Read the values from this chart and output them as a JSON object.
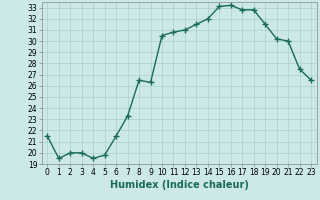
{
  "title": "",
  "xlabel": "Humidex (Indice chaleur)",
  "x": [
    0,
    1,
    2,
    3,
    4,
    5,
    6,
    7,
    8,
    9,
    10,
    11,
    12,
    13,
    14,
    15,
    16,
    17,
    18,
    19,
    20,
    21,
    22,
    23
  ],
  "y": [
    21.5,
    19.5,
    20.0,
    20.0,
    19.5,
    19.8,
    21.5,
    23.3,
    26.5,
    26.3,
    30.5,
    30.8,
    31.0,
    31.5,
    32.0,
    33.1,
    33.2,
    32.8,
    32.8,
    31.5,
    30.2,
    30.0,
    27.5,
    26.5
  ],
  "line_color": "#1a6b5a",
  "marker": "+",
  "marker_size": 4,
  "marker_linewidth": 1.0,
  "bg_color": "#cce8e8",
  "grid_color": "#aad0cc",
  "ylim": [
    19,
    33.5
  ],
  "xlim": [
    -0.5,
    23.5
  ],
  "yticks": [
    19,
    20,
    21,
    22,
    23,
    24,
    25,
    26,
    27,
    28,
    29,
    30,
    31,
    32,
    33
  ],
  "xticks": [
    0,
    1,
    2,
    3,
    4,
    5,
    6,
    7,
    8,
    9,
    10,
    11,
    12,
    13,
    14,
    15,
    16,
    17,
    18,
    19,
    20,
    21,
    22,
    23
  ],
  "tick_fontsize": 5.5,
  "xlabel_fontsize": 7.0,
  "linewidth": 1.0
}
